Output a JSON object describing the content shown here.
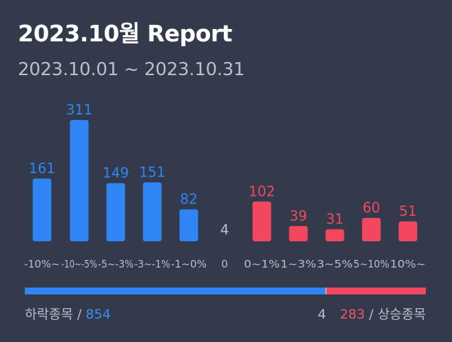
{
  "title": "2023.10월 Report",
  "date_range": "2023.10.01 ~ 2023.10.31",
  "colors": {
    "background": "#333a4b",
    "down": "#2f84f6",
    "up": "#f2475f",
    "neutral": "#a7adb9"
  },
  "chart_data": {
    "type": "bar",
    "categories": [
      "-10%~",
      "-10~-5%",
      "-5~-3%",
      "-3~-1%",
      "-1~0%",
      "0",
      "0~1%",
      "1~3%",
      "3~5%",
      "5~10%",
      "10%~"
    ],
    "values": [
      161,
      311,
      149,
      151,
      82,
      4,
      102,
      39,
      31,
      60,
      51
    ],
    "groups": [
      "down",
      "down",
      "down",
      "down",
      "down",
      "neutral",
      "up",
      "up",
      "up",
      "up",
      "up"
    ],
    "value_labels": [
      "161",
      "311",
      "149",
      "151",
      "82",
      "4",
      "102",
      "39",
      "31",
      "60",
      "51"
    ],
    "ylim": [
      0,
      311
    ]
  },
  "summary": {
    "down_label": "하락종목",
    "separator": "/",
    "down_total": "854",
    "neutral_total": "4",
    "up_total": "283",
    "up_label": "상승종목",
    "down_count": 854,
    "neutral_count": 4,
    "up_count": 283
  }
}
